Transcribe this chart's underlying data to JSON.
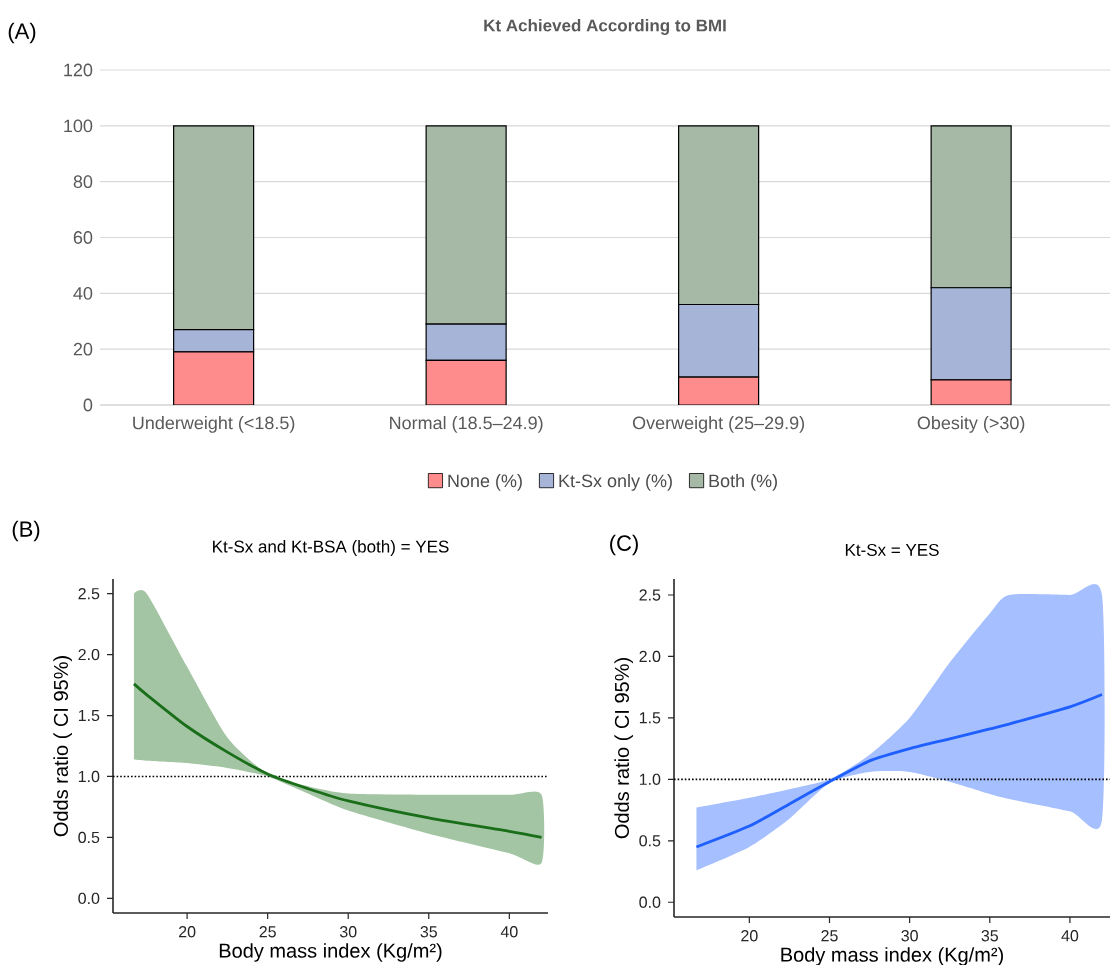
{
  "chart_data": [
    {
      "type": "bar",
      "stacked": true,
      "title": "Kt Achieved According to BMI",
      "annotations": [
        "(A)"
      ],
      "categories": [
        "Underweight (<18.5)",
        "Normal (18.5–24.9)",
        "Overweight (25–29.9)",
        "Obesity (>30)"
      ],
      "series": [
        {
          "name": "None (%)",
          "color": "#ff8c8c",
          "values": [
            19,
            16,
            10,
            9
          ]
        },
        {
          "name": "Kt-Sx only (%)",
          "color": "#a6b4d8",
          "values": [
            8,
            13,
            26,
            33
          ]
        },
        {
          "name": "Both (%)",
          "color": "#a6b9a6",
          "values": [
            73,
            71,
            64,
            58
          ]
        }
      ],
      "ylim": [
        0,
        120
      ],
      "yticks": [
        0,
        20,
        40,
        60,
        80,
        100,
        120
      ],
      "grid": "y",
      "legend": "bottom"
    },
    {
      "type": "line",
      "title": "Kt-Sx and Kt-BSA (both) = YES",
      "annotations": [
        "(B)"
      ],
      "xlabel": "Body mass index (Kg/m²)",
      "ylabel": "Odds ratio ( CI 95%)",
      "x": [
        16.7,
        17.5,
        20,
        22.5,
        25,
        27.5,
        30,
        35,
        40,
        42
      ],
      "series": [
        {
          "color": "#1a6e1a",
          "values": [
            1.76,
            1.67,
            1.41,
            1.2,
            1.02,
            0.9,
            0.8,
            0.66,
            0.55,
            0.5
          ],
          "lower": [
            1.14,
            1.13,
            1.11,
            1.07,
            1.0,
            0.86,
            0.72,
            0.53,
            0.37,
            0.29
          ],
          "upper": [
            2.5,
            2.5,
            1.9,
            1.32,
            1.02,
            0.92,
            0.86,
            0.85,
            0.85,
            0.85
          ]
        }
      ],
      "ref_lines": [
        {
          "axis": "y",
          "value": 1,
          "line_style": "dotted"
        }
      ],
      "xlim": [
        15.4,
        42.4
      ],
      "ylim": [
        -0.12,
        2.62
      ],
      "xticks": [
        20,
        25,
        30,
        35,
        40
      ],
      "yticks": [
        {
          "value": 0,
          "label": "0.0"
        },
        {
          "value": 0.5,
          "label": "0.5"
        },
        {
          "value": 1,
          "label": "1.0"
        },
        {
          "value": 1.5,
          "label": "1.5"
        },
        {
          "value": 2,
          "label": "2.0"
        },
        {
          "value": 2.5,
          "label": "2.5"
        }
      ]
    },
    {
      "type": "line",
      "title": "Kt-Sx = YES",
      "annotations": [
        "(C)"
      ],
      "xlabel": "Body mass index (Kg/m²)",
      "ylabel": "Odds ratio ( CI 95%)",
      "x": [
        16.7,
        20,
        22.5,
        25,
        27.5,
        30,
        32.5,
        35,
        36.2,
        40,
        42
      ],
      "series": [
        {
          "color": "#1f5fff",
          "values": [
            0.45,
            0.62,
            0.8,
            0.98,
            1.15,
            1.25,
            1.33,
            1.41,
            1.45,
            1.59,
            1.69
          ],
          "lower": [
            0.26,
            0.45,
            0.68,
            0.97,
            1.06,
            1.06,
            0.98,
            0.88,
            0.84,
            0.74,
            0.67
          ],
          "upper": [
            0.77,
            0.85,
            0.92,
            1.0,
            1.2,
            1.5,
            1.95,
            2.35,
            2.5,
            2.5,
            2.5
          ]
        }
      ],
      "ref_lines": [
        {
          "axis": "y",
          "value": 1,
          "line_style": "dotted"
        }
      ],
      "xlim": [
        15.3,
        42.5
      ],
      "ylim": [
        -0.12,
        2.63
      ],
      "xticks": [
        20,
        25,
        30,
        35,
        40
      ],
      "yticks": [
        {
          "value": 0,
          "label": "0.0"
        },
        {
          "value": 0.5,
          "label": "0.5"
        },
        {
          "value": 1,
          "label": "1.0"
        },
        {
          "value": 1.5,
          "label": "1.5"
        },
        {
          "value": 2,
          "label": "2.0"
        },
        {
          "value": 2.5,
          "label": "2.5"
        }
      ]
    }
  ]
}
